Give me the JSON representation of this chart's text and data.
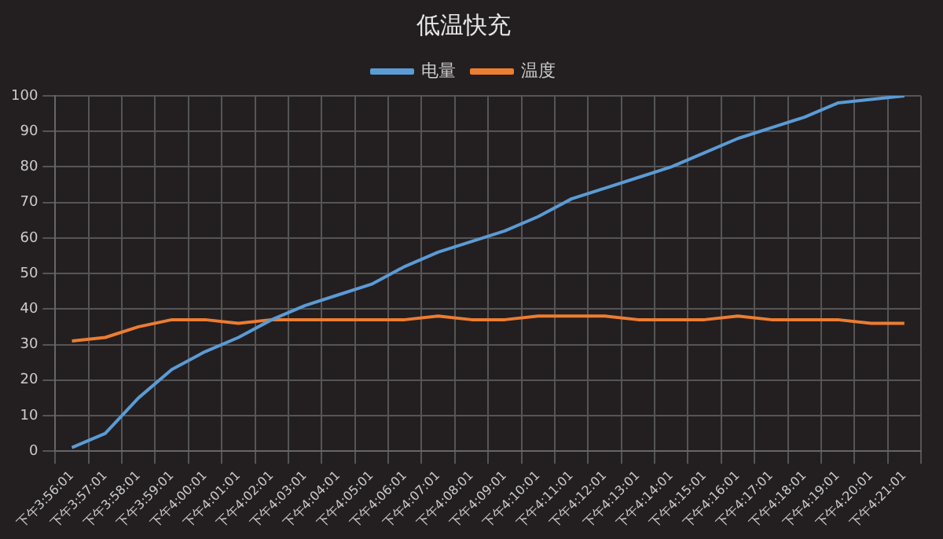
{
  "chart_data": {
    "type": "line",
    "title": "低温快充",
    "categories": [
      "下午3:56:01",
      "下午3:57:01",
      "下午3:58:01",
      "下午3:59:01",
      "下午4:00:01",
      "下午4:01:01",
      "下午4:02:01",
      "下午4:03:01",
      "下午4:04:01",
      "下午4:05:01",
      "下午4:06:01",
      "下午4:07:01",
      "下午4:08:01",
      "下午4:09:01",
      "下午4:10:01",
      "下午4:11:01",
      "下午4:12:01",
      "下午4:13:01",
      "下午4:14:01",
      "下午4:15:01",
      "下午4:16:01",
      "下午4:17:01",
      "下午4:18:01",
      "下午4:19:01",
      "下午4:20:01",
      "下午4:21:01"
    ],
    "series": [
      {
        "name": "电量",
        "color": "#5b9bd5",
        "values": [
          1,
          5,
          15,
          23,
          28,
          32,
          37,
          41,
          44,
          47,
          52,
          56,
          59,
          62,
          66,
          71,
          74,
          77,
          80,
          84,
          88,
          91,
          94,
          98,
          99,
          100
        ]
      },
      {
        "name": "温度",
        "color": "#ed7d31",
        "values": [
          31,
          32,
          35,
          37,
          37,
          36,
          37,
          37,
          37,
          37,
          37,
          38,
          37,
          37,
          38,
          38,
          38,
          37,
          37,
          37,
          38,
          37,
          37,
          37,
          36,
          36
        ]
      }
    ],
    "ylim": [
      0,
      100
    ],
    "yticks": [
      0,
      10,
      20,
      30,
      40,
      50,
      60,
      70,
      80,
      90,
      100
    ],
    "grid": true,
    "legend": "top",
    "marker": "none",
    "line_style": "solid"
  }
}
